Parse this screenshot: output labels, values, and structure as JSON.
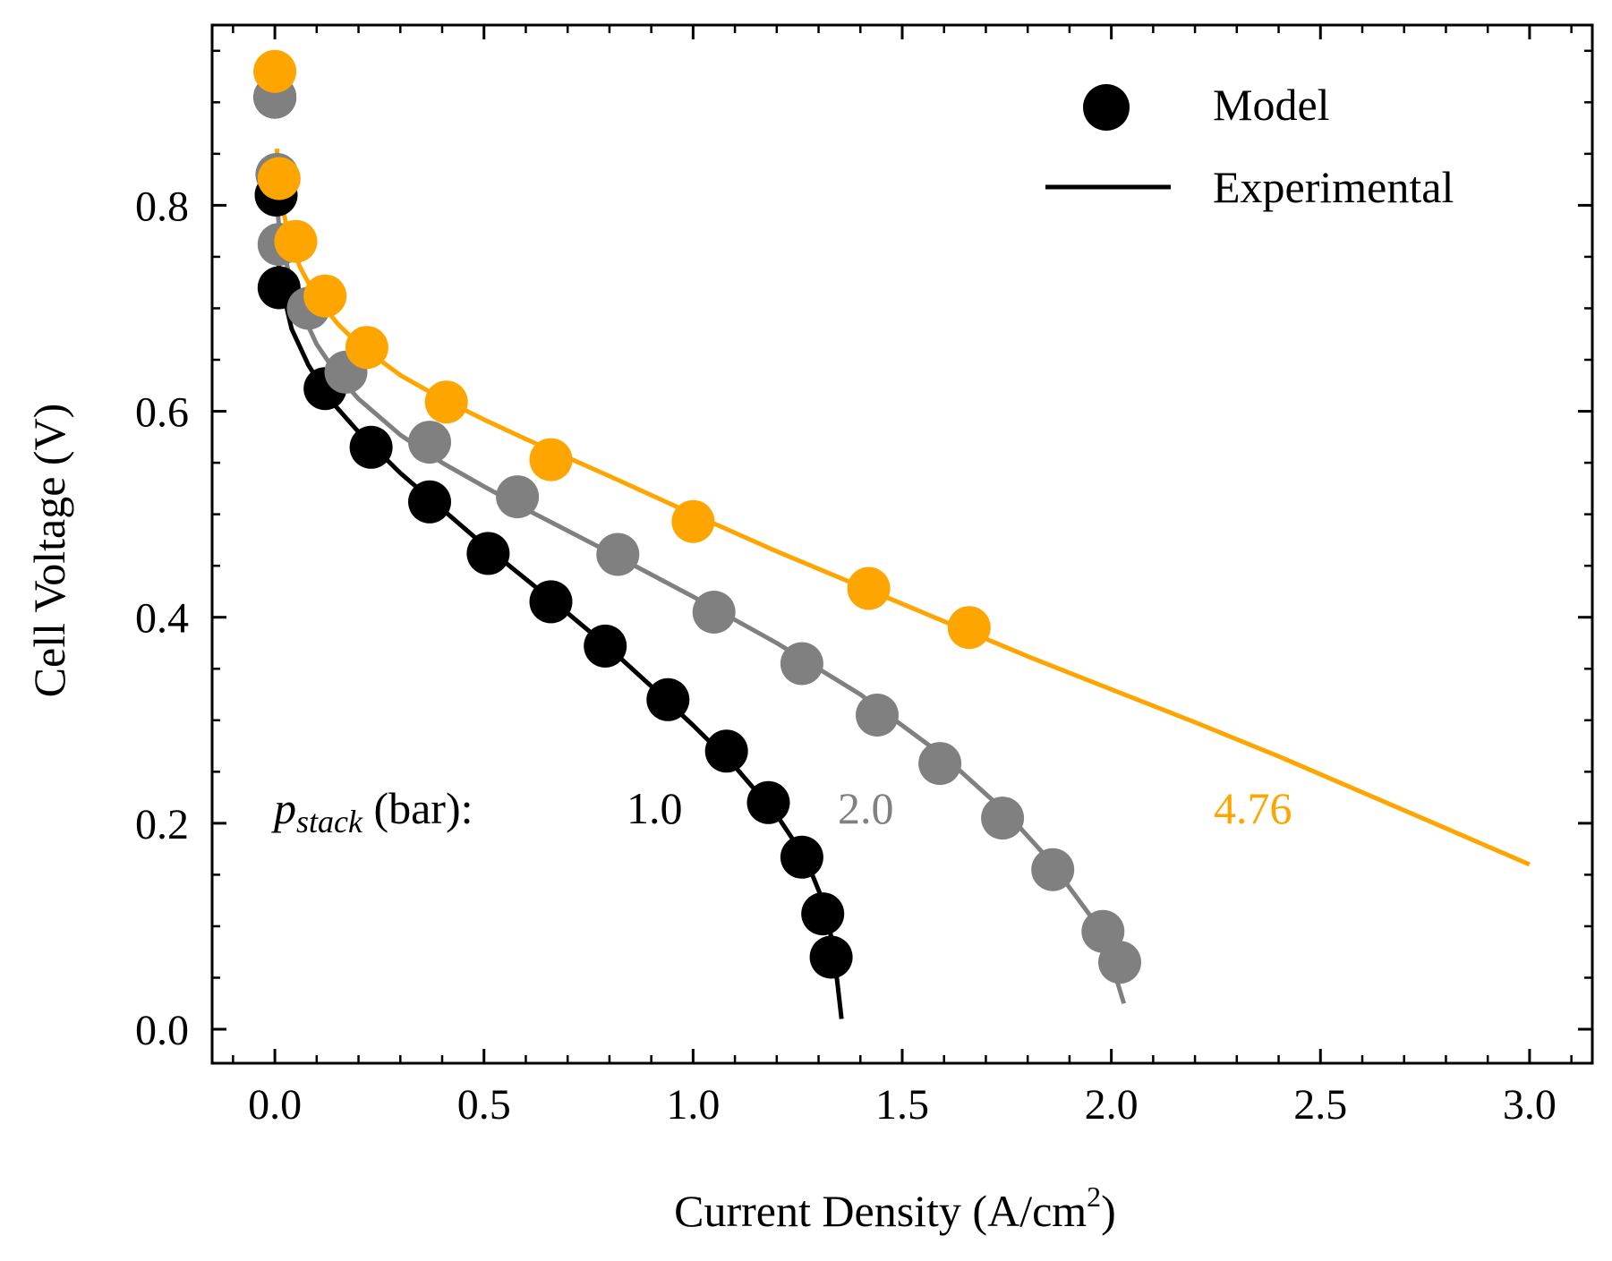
{
  "chart_data": {
    "type": "line",
    "xlabel": "Current Density (A/cm",
    "xlabel_sup": "2",
    "xlabel_close": ")",
    "ylabel": "Cell Voltage (V)",
    "xlim": [
      -0.15,
      3.15
    ],
    "ylim": [
      -0.033,
      0.975
    ],
    "xticks": [
      0.0,
      0.5,
      1.0,
      1.5,
      2.0,
      2.5,
      3.0
    ],
    "xtick_labels": [
      "0.0",
      "0.5",
      "1.0",
      "1.5",
      "2.0",
      "2.5",
      "3.0"
    ],
    "yticks": [
      0.0,
      0.2,
      0.4,
      0.6,
      0.8
    ],
    "ytick_labels": [
      "0.0",
      "0.2",
      "0.4",
      "0.6",
      "0.8"
    ],
    "grid": false,
    "legend": {
      "position": "top-right",
      "model_label": "Model",
      "experimental_label": "Experimental"
    },
    "annotation": {
      "p_label": "p",
      "p_sub": "stack",
      "p_unit": " (bar):"
    },
    "series": [
      {
        "name": "1.0",
        "color": "#000000",
        "model": {
          "x": [
            0.0,
            0.003,
            0.01,
            0.12,
            0.23,
            0.37,
            0.51,
            0.66,
            0.79,
            0.94,
            1.08,
            1.18,
            1.26,
            1.31,
            1.33
          ],
          "y": [
            0.905,
            0.81,
            0.72,
            0.622,
            0.565,
            0.512,
            0.462,
            0.415,
            0.372,
            0.32,
            0.27,
            0.22,
            0.167,
            0.112,
            0.07
          ]
        },
        "experimental": {
          "x": [
            0.005,
            0.01,
            0.02,
            0.04,
            0.08,
            0.13,
            0.2,
            0.3,
            0.4,
            0.5,
            0.6,
            0.7,
            0.8,
            0.9,
            1.0,
            1.1,
            1.2,
            1.27,
            1.31,
            1.33,
            1.345,
            1.355
          ],
          "y": [
            0.76,
            0.74,
            0.715,
            0.68,
            0.645,
            0.612,
            0.58,
            0.54,
            0.505,
            0.47,
            0.437,
            0.404,
            0.37,
            0.333,
            0.295,
            0.255,
            0.208,
            0.165,
            0.125,
            0.09,
            0.045,
            0.01
          ]
        }
      },
      {
        "name": "2.0",
        "color": "#808080",
        "model": {
          "x": [
            0.0,
            0.005,
            0.01,
            0.08,
            0.17,
            0.37,
            0.58,
            0.82,
            1.05,
            1.26,
            1.44,
            1.59,
            1.74,
            1.86,
            1.98,
            2.02
          ],
          "y": [
            0.905,
            0.83,
            0.762,
            0.7,
            0.638,
            0.57,
            0.517,
            0.461,
            0.405,
            0.355,
            0.305,
            0.258,
            0.205,
            0.155,
            0.095,
            0.065
          ]
        },
        "experimental": {
          "x": [
            0.005,
            0.01,
            0.03,
            0.06,
            0.1,
            0.15,
            0.2,
            0.3,
            0.4,
            0.5,
            0.6,
            0.8,
            1.0,
            1.2,
            1.4,
            1.6,
            1.75,
            1.85,
            1.95,
            2.0,
            2.03
          ],
          "y": [
            0.8,
            0.78,
            0.74,
            0.7,
            0.665,
            0.635,
            0.612,
            0.577,
            0.55,
            0.527,
            0.505,
            0.463,
            0.42,
            0.375,
            0.325,
            0.265,
            0.21,
            0.165,
            0.11,
            0.065,
            0.025
          ]
        }
      },
      {
        "name": "4.76",
        "color": "#FFA500",
        "model": {
          "x": [
            0.0,
            0.01,
            0.05,
            0.12,
            0.22,
            0.41,
            0.66,
            1.0,
            1.42,
            1.66
          ],
          "y": [
            0.93,
            0.826,
            0.765,
            0.712,
            0.662,
            0.609,
            0.553,
            0.493,
            0.428,
            0.39
          ]
        },
        "experimental": {
          "x": [
            0.005,
            0.01,
            0.03,
            0.06,
            0.1,
            0.15,
            0.2,
            0.3,
            0.4,
            0.5,
            0.6,
            0.8,
            1.0,
            1.2,
            1.4,
            1.6,
            1.8,
            2.0,
            2.2,
            2.4,
            2.6,
            2.8,
            3.0
          ],
          "y": [
            0.855,
            0.815,
            0.775,
            0.74,
            0.71,
            0.685,
            0.665,
            0.635,
            0.612,
            0.592,
            0.573,
            0.537,
            0.5,
            0.464,
            0.43,
            0.396,
            0.362,
            0.33,
            0.298,
            0.265,
            0.23,
            0.195,
            0.16
          ]
        }
      }
    ]
  }
}
